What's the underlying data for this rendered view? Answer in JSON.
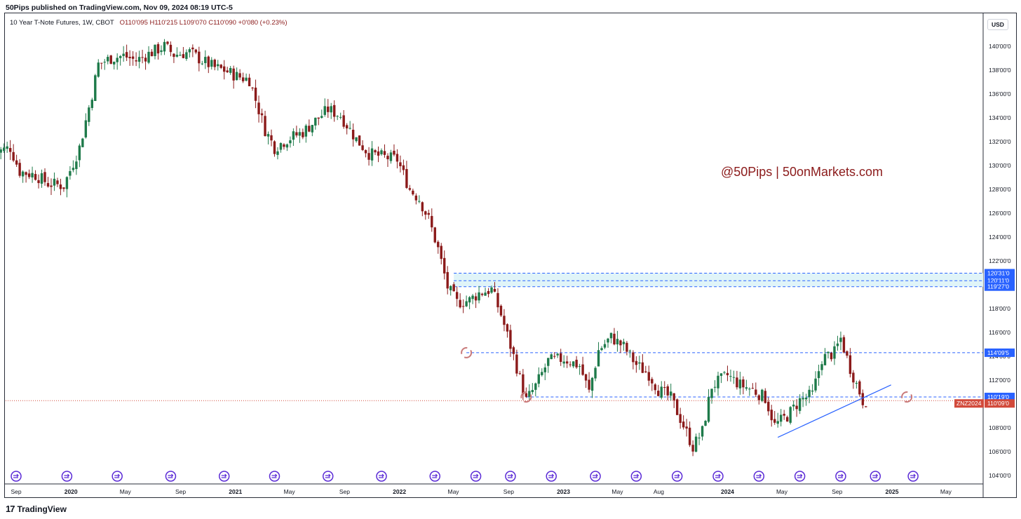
{
  "header": {
    "published": "50Pips published on TradingView.com, Nov 09, 2024 08:19 UTC-5",
    "symbol": "10 Year T-Note Futures, 1W, CBOT",
    "ohlc": "O110'095  H110'215  L109'070  C110'090  +0'080 (+0.23%)",
    "currency": "USD"
  },
  "footer": {
    "brand": "TradingView",
    "logo_glyph": "17"
  },
  "colors": {
    "bull": "#1e7a4a",
    "bear": "#8b1a1a",
    "level_line": "#2962ff",
    "zone_fill": "#e0f4f8",
    "trend_line": "#2962ff",
    "last_price": "#d24a3b"
  },
  "icons": {
    "event_marker": "arrow-circle-icon",
    "reset_marker": "refresh-icon"
  },
  "chart_data": {
    "type": "candlestick",
    "title": "10 Year T-Note Futures, 1W, CBOT",
    "ylim": [
      103.5,
      142
    ],
    "y_ticks": [
      "104'00'0",
      "106'00'0",
      "108'00'0",
      "110'00'0",
      "112'00'0",
      "114'00'0",
      "116'00'0",
      "118'00'0",
      "120'00'0",
      "122'00'0",
      "124'00'0",
      "126'00'0",
      "128'00'0",
      "130'00'0",
      "132'00'0",
      "134'00'0",
      "136'00'0",
      "138'00'0",
      "140'00'0"
    ],
    "x_ticks": [
      "Sep",
      "2020",
      "May",
      "Sep",
      "2021",
      "May",
      "Sep",
      "2022",
      "May",
      "Sep",
      "2023",
      "May",
      "Aug",
      "2024",
      "May",
      "Sep",
      "2025",
      "May"
    ],
    "x_tick_dates": [
      "2019-09-01",
      "2020-01-01",
      "2020-05-01",
      "2020-09-01",
      "2021-01-01",
      "2021-05-01",
      "2021-09-01",
      "2022-01-01",
      "2022-05-01",
      "2022-09-01",
      "2023-01-01",
      "2023-05-01",
      "2023-08-01",
      "2024-01-01",
      "2024-05-01",
      "2024-09-01",
      "2025-01-01",
      "2025-05-01"
    ],
    "path_points": [
      [
        "2019-07-15",
        131.0
      ],
      [
        "2019-08-26",
        131.5
      ],
      [
        "2019-09-16",
        129.5
      ],
      [
        "2019-10-21",
        129.2
      ],
      [
        "2019-11-18",
        128.5
      ],
      [
        "2019-12-23",
        128.3
      ],
      [
        "2020-01-27",
        131.5
      ],
      [
        "2020-02-24",
        136.0
      ],
      [
        "2020-03-09",
        138.5
      ],
      [
        "2020-04-06",
        139.0
      ],
      [
        "2020-05-04",
        139.2
      ],
      [
        "2020-06-01",
        138.8
      ],
      [
        "2020-07-06",
        139.5
      ],
      [
        "2020-08-03",
        140.0
      ],
      [
        "2020-08-24",
        139.3
      ],
      [
        "2020-09-28",
        139.5
      ],
      [
        "2020-10-26",
        138.8
      ],
      [
        "2020-11-23",
        138.2
      ],
      [
        "2020-12-14",
        138.0
      ],
      [
        "2021-01-11",
        137.5
      ],
      [
        "2021-02-08",
        137.2
      ],
      [
        "2021-02-22",
        135.5
      ],
      [
        "2021-03-15",
        133.0
      ],
      [
        "2021-04-05",
        131.5
      ],
      [
        "2021-05-03",
        132.2
      ],
      [
        "2021-06-07",
        132.8
      ],
      [
        "2021-07-12",
        134.0
      ],
      [
        "2021-08-02",
        134.7
      ],
      [
        "2021-08-30",
        134.2
      ],
      [
        "2021-10-04",
        132.2
      ],
      [
        "2021-11-01",
        131.0
      ],
      [
        "2021-12-06",
        130.7
      ],
      [
        "2022-01-03",
        130.5
      ],
      [
        "2022-01-31",
        128.0
      ],
      [
        "2022-02-21",
        127.2
      ],
      [
        "2022-03-14",
        125.5
      ],
      [
        "2022-04-04",
        123.0
      ],
      [
        "2022-04-25",
        119.8
      ],
      [
        "2022-05-16",
        118.5
      ],
      [
        "2022-06-13",
        118.7
      ],
      [
        "2022-07-04",
        119.3
      ],
      [
        "2022-08-01",
        119.6
      ],
      [
        "2022-08-22",
        117.5
      ],
      [
        "2022-09-19",
        114.0
      ],
      [
        "2022-10-17",
        110.3
      ],
      [
        "2022-11-07",
        111.5
      ],
      [
        "2022-12-05",
        113.6
      ],
      [
        "2023-01-09",
        113.8
      ],
      [
        "2023-02-13",
        113.2
      ],
      [
        "2023-03-06",
        111.0
      ],
      [
        "2023-03-27",
        114.5
      ],
      [
        "2023-04-24",
        115.6
      ],
      [
        "2023-05-22",
        114.8
      ],
      [
        "2023-06-19",
        113.3
      ],
      [
        "2023-07-17",
        112.5
      ],
      [
        "2023-08-07",
        111.2
      ],
      [
        "2023-09-04",
        110.5
      ],
      [
        "2023-10-02",
        108.2
      ],
      [
        "2023-10-23",
        106.4
      ],
      [
        "2023-11-13",
        107.7
      ],
      [
        "2023-12-04",
        111.5
      ],
      [
        "2024-01-08",
        112.4
      ],
      [
        "2024-02-05",
        111.6
      ],
      [
        "2024-03-04",
        111.2
      ],
      [
        "2024-04-01",
        110.5
      ],
      [
        "2024-04-22",
        108.2
      ],
      [
        "2024-05-20",
        109.0
      ],
      [
        "2024-06-17",
        110.3
      ],
      [
        "2024-07-15",
        110.8
      ],
      [
        "2024-08-05",
        113.8
      ],
      [
        "2024-09-02",
        114.3
      ],
      [
        "2024-09-16",
        115.5
      ],
      [
        "2024-10-07",
        113.0
      ],
      [
        "2024-10-28",
        111.0
      ],
      [
        "2024-11-04",
        110.28
      ]
    ],
    "support_resistance_levels": [
      {
        "label": "120'31'0",
        "value": 120.97
      },
      {
        "label": "120'11'0",
        "value": 120.34
      },
      {
        "label": "119'27'0",
        "value": 119.84
      },
      {
        "label": "114'09'5",
        "value": 114.3
      },
      {
        "label": "110'19'0",
        "value": 110.59
      }
    ],
    "zone": {
      "from_date": "2022-05-02",
      "to_date": "2024-12-30",
      "low": 119.84,
      "high": 120.97
    },
    "trend_line": {
      "start": [
        "2024-04-22",
        107.2
      ],
      "end": [
        "2024-12-30",
        111.6
      ]
    },
    "last_price": {
      "symbol": "ZNZ2024",
      "label": "110'09'0",
      "value": 110.28
    },
    "event_marker_dates": [
      "2019-09-01",
      "2019-12-23",
      "2020-04-13",
      "2020-08-10",
      "2020-12-07",
      "2021-03-29",
      "2021-07-26",
      "2021-11-22",
      "2022-03-21",
      "2022-06-20",
      "2022-09-05",
      "2022-12-05",
      "2023-03-13",
      "2023-06-12",
      "2023-09-11",
      "2023-12-11",
      "2024-03-11",
      "2024-06-10",
      "2024-09-09",
      "2024-11-25",
      "2025-02-17"
    ],
    "reset_marker_points": [
      [
        "2022-05-30",
        114.3
      ],
      [
        "2022-10-10",
        110.59
      ],
      [
        "2025-02-03",
        110.59
      ]
    ],
    "annotation": "@50Pips  |  50onMarkets.com"
  }
}
